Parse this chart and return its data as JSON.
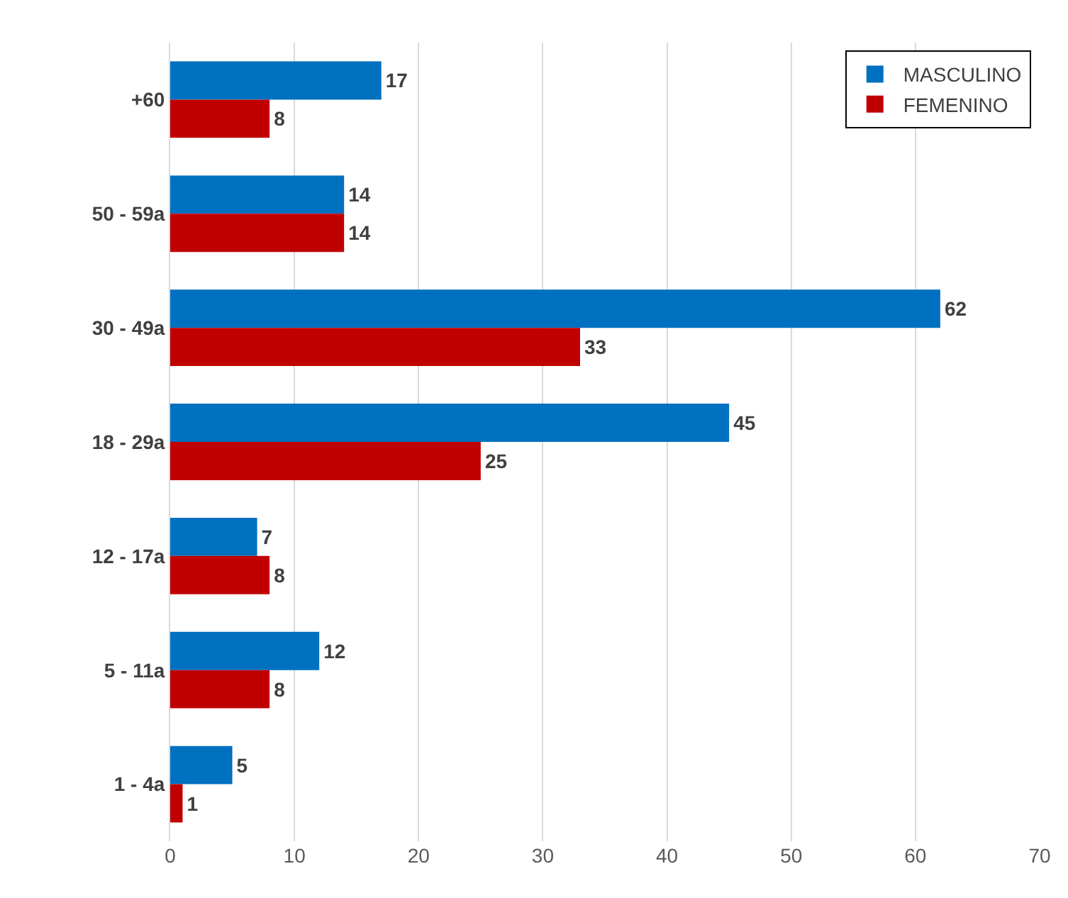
{
  "chart_data": {
    "type": "bar",
    "orientation": "horizontal",
    "categories": [
      "+60",
      "50 - 59a",
      "30 - 49a",
      "18 - 29a",
      "12 - 17a",
      "5 - 11a",
      "1 - 4a"
    ],
    "series": [
      {
        "name": "MASCULINO",
        "color": "#0070c0",
        "values": [
          17,
          14,
          62,
          45,
          7,
          12,
          5
        ]
      },
      {
        "name": "FEMENINO",
        "color": "#c00000",
        "values": [
          8,
          14,
          33,
          25,
          8,
          8,
          1
        ]
      }
    ],
    "xlim": [
      0,
      70
    ],
    "xticks": [
      0,
      10,
      20,
      30,
      40,
      50,
      60,
      70
    ],
    "grid": "x",
    "legend": "top right",
    "data_labels": true
  }
}
